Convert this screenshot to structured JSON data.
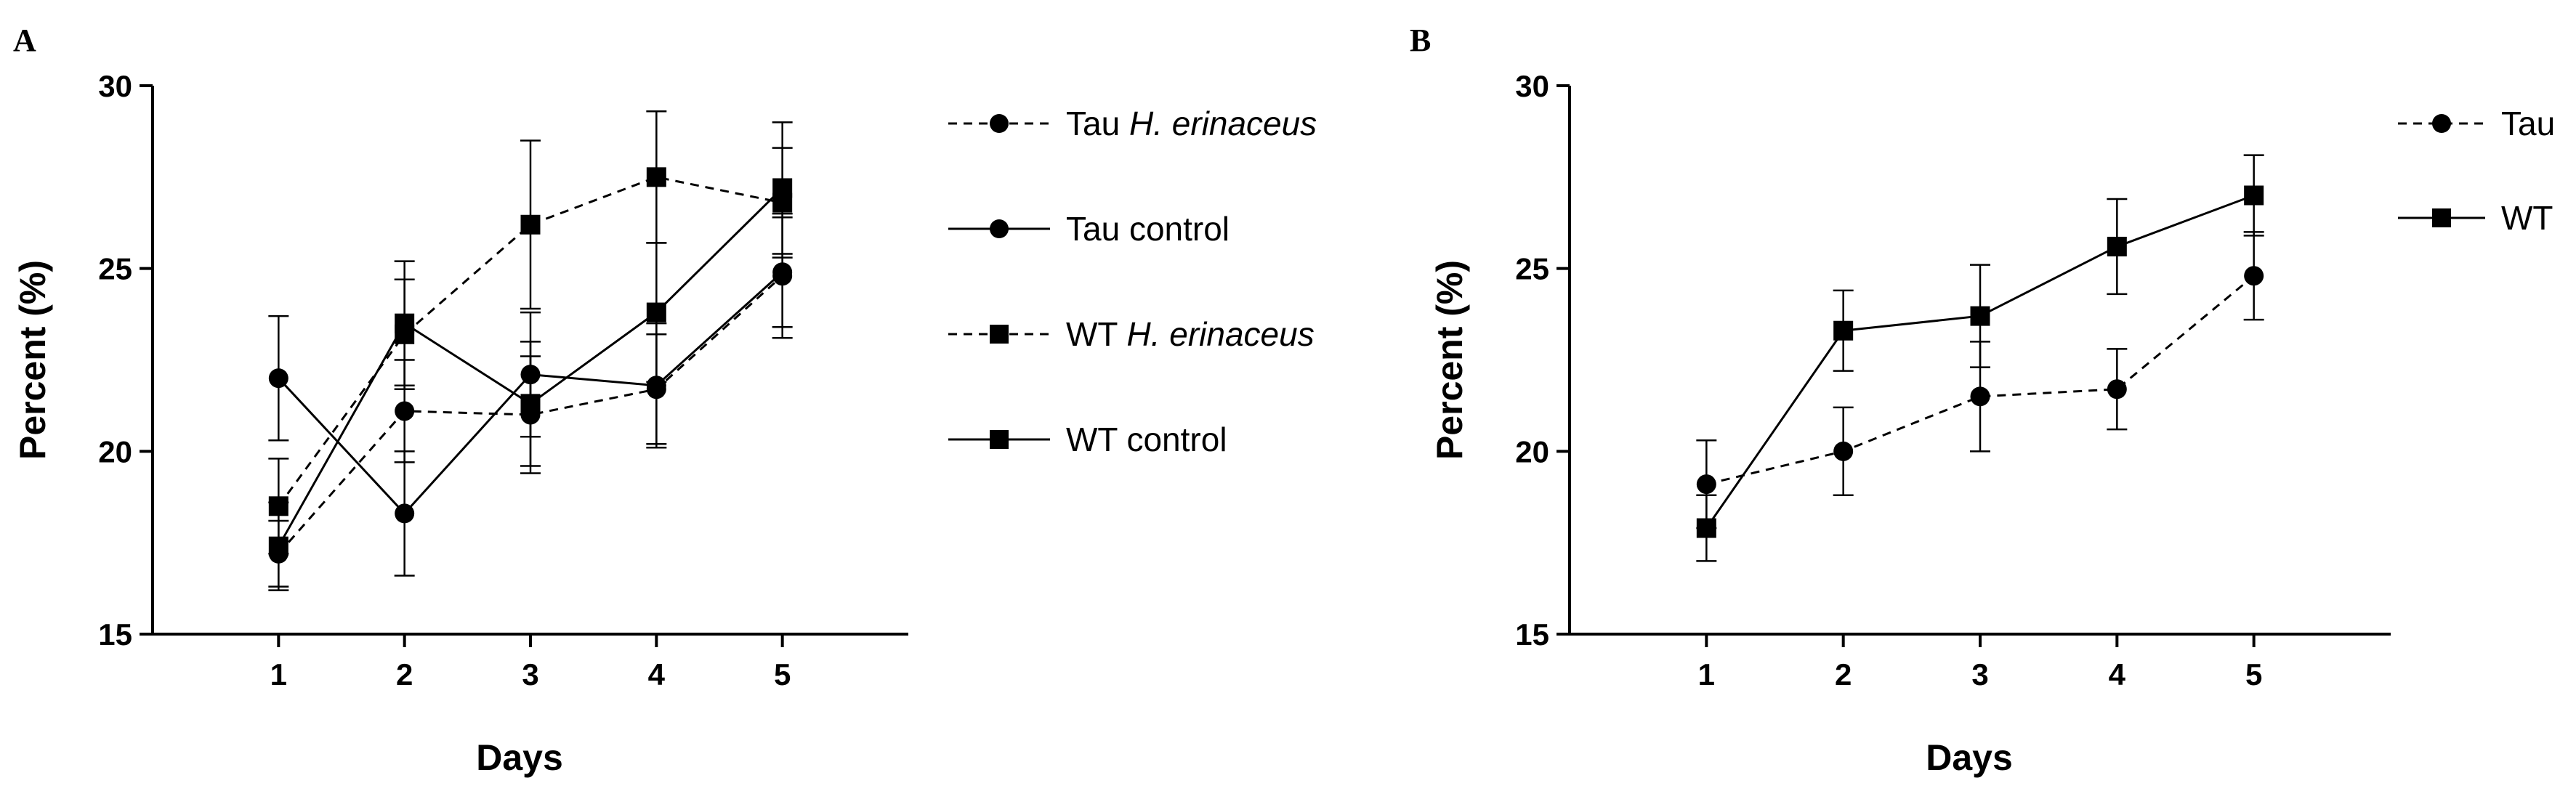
{
  "chart_data": [
    {
      "type": "line",
      "panel_label": "A",
      "xlabel": "Days",
      "ylabel": "Percent (%)",
      "x": [
        1,
        2,
        3,
        4,
        5
      ],
      "xlim": [
        0,
        6
      ],
      "ylim": [
        15,
        30
      ],
      "yticks": [
        15,
        20,
        25,
        30
      ],
      "grid": false,
      "legend_position": "right",
      "series": [
        {
          "name": "Tau H. erinaceus",
          "name_plain": "Tau ",
          "name_italic": "H. erinaceus",
          "marker": "circle",
          "dash": "dashed",
          "values": [
            17.2,
            21.1,
            21.0,
            21.7,
            24.8
          ],
          "errors": [
            0.9,
            1.4,
            1.6,
            1.5,
            1.7
          ]
        },
        {
          "name": "Tau control",
          "name_plain": "Tau control",
          "name_italic": "",
          "marker": "circle",
          "dash": "solid",
          "values": [
            22.0,
            18.3,
            22.1,
            21.8,
            24.9
          ],
          "errors": [
            1.7,
            1.7,
            1.7,
            1.7,
            1.5
          ]
        },
        {
          "name": "WT H. erinaceus",
          "name_plain": "WT ",
          "name_italic": "H. erinaceus",
          "marker": "square",
          "dash": "dashed",
          "values": [
            18.5,
            23.2,
            26.2,
            27.5,
            26.8
          ],
          "errors": [
            1.3,
            1.5,
            2.3,
            1.8,
            1.5
          ]
        },
        {
          "name": "WT control",
          "name_plain": "WT control",
          "name_italic": "",
          "marker": "square",
          "dash": "solid",
          "values": [
            17.4,
            23.5,
            21.3,
            23.8,
            27.2
          ],
          "errors": [
            1.2,
            1.7,
            1.7,
            1.9,
            1.8
          ]
        }
      ]
    },
    {
      "type": "line",
      "panel_label": "B",
      "xlabel": "Days",
      "ylabel": "Percent (%)",
      "x": [
        1,
        2,
        3,
        4,
        5
      ],
      "xlim": [
        0,
        6
      ],
      "ylim": [
        15,
        30
      ],
      "yticks": [
        15,
        20,
        25,
        30
      ],
      "grid": false,
      "legend_position": "top-right",
      "series": [
        {
          "name": "Tau",
          "name_plain": "Tau",
          "name_italic": "",
          "marker": "circle",
          "dash": "dashed",
          "values": [
            19.1,
            20.0,
            21.5,
            21.7,
            24.8
          ],
          "errors": [
            1.2,
            1.2,
            1.5,
            1.1,
            1.2
          ]
        },
        {
          "name": "WT",
          "name_plain": "WT",
          "name_italic": "",
          "marker": "square",
          "dash": "solid",
          "values": [
            17.9,
            23.3,
            23.7,
            25.6,
            27.0
          ],
          "errors": [
            0.9,
            1.1,
            1.4,
            1.3,
            1.1
          ]
        }
      ]
    }
  ]
}
